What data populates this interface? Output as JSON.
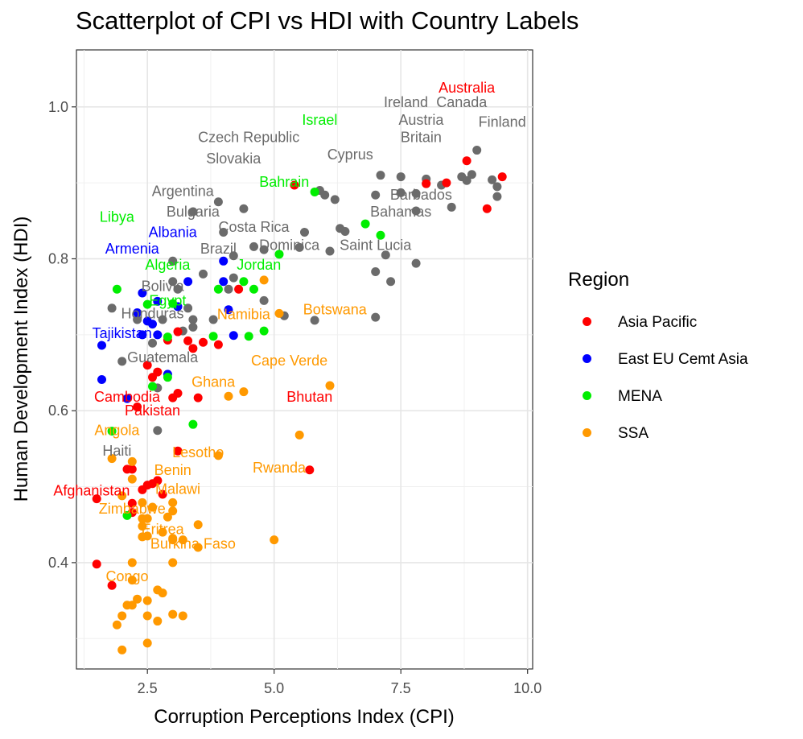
{
  "chart_data": {
    "type": "scatter",
    "title": "Scatterplot of CPI vs HDI with Country Labels",
    "xlabel": "Corruption Perceptions Index (CPI)",
    "ylabel": "Human Development Index (HDI)",
    "xlim": [
      1.1,
      10.1
    ],
    "ylim": [
      0.26,
      1.075
    ],
    "xticks": [
      2.5,
      5.0,
      7.5,
      10.0
    ],
    "xtick_labels": [
      "2.5",
      "5.0",
      "7.5",
      "10.0"
    ],
    "yticks": [
      0.4,
      0.6,
      0.8,
      1.0
    ],
    "ytick_labels": [
      "0.4",
      "0.6",
      "0.8",
      "1.0"
    ],
    "grid": true,
    "legend": {
      "title": "Region",
      "placement": "right"
    },
    "series": [
      {
        "name": "Asia Pacific",
        "color": "#ff0000",
        "points": [
          [
            1.5,
            0.484
          ],
          [
            1.5,
            0.398
          ],
          [
            1.8,
            0.37
          ],
          [
            2.1,
            0.523
          ],
          [
            2.2,
            0.523
          ],
          [
            2.2,
            0.466
          ],
          [
            2.2,
            0.478
          ],
          [
            2.3,
            0.605
          ],
          [
            2.4,
            0.496
          ],
          [
            2.5,
            0.502
          ],
          [
            2.5,
            0.66
          ],
          [
            2.6,
            0.644
          ],
          [
            2.6,
            0.504
          ],
          [
            2.7,
            0.651
          ],
          [
            2.7,
            0.508
          ],
          [
            2.7,
            0.508
          ],
          [
            2.8,
            0.49
          ],
          [
            2.9,
            0.693
          ],
          [
            3.0,
            0.617
          ],
          [
            3.1,
            0.623
          ],
          [
            3.1,
            0.704
          ],
          [
            3.1,
            0.547
          ],
          [
            3.3,
            0.692
          ],
          [
            3.4,
            0.682
          ],
          [
            3.5,
            0.617
          ],
          [
            3.6,
            0.69
          ],
          [
            3.9,
            0.687
          ],
          [
            4.3,
            0.76
          ],
          [
            5.4,
            0.897
          ],
          [
            5.7,
            0.522
          ],
          [
            8.0,
            0.899
          ],
          [
            8.4,
            0.9
          ],
          [
            8.8,
            0.929
          ],
          [
            9.2,
            0.866
          ],
          [
            9.5,
            0.908
          ]
        ]
      },
      {
        "name": "East EU Cemt Asia",
        "color": "#0000ff",
        "points": [
          [
            1.6,
            0.641
          ],
          [
            1.6,
            0.686
          ],
          [
            2.1,
            0.616
          ],
          [
            2.3,
            0.729
          ],
          [
            2.4,
            0.755
          ],
          [
            2.4,
            0.7
          ],
          [
            2.5,
            0.718
          ],
          [
            2.6,
            0.714
          ],
          [
            2.7,
            0.744
          ],
          [
            2.7,
            0.7
          ],
          [
            2.9,
            0.648
          ],
          [
            3.1,
            0.737
          ],
          [
            3.3,
            0.77
          ],
          [
            4.0,
            0.797
          ],
          [
            4.0,
            0.77
          ],
          [
            4.1,
            0.733
          ],
          [
            4.2,
            0.699
          ]
        ]
      },
      {
        "name": "MENA",
        "color": "#00ee00",
        "points": [
          [
            1.8,
            0.573
          ],
          [
            1.9,
            0.76
          ],
          [
            2.1,
            0.462
          ],
          [
            2.5,
            0.74
          ],
          [
            2.6,
            0.632
          ],
          [
            2.9,
            0.644
          ],
          [
            2.9,
            0.697
          ],
          [
            3.0,
            0.741
          ],
          [
            3.4,
            0.582
          ],
          [
            3.8,
            0.698
          ],
          [
            3.9,
            0.76
          ],
          [
            4.4,
            0.77
          ],
          [
            4.5,
            0.698
          ],
          [
            4.6,
            0.76
          ],
          [
            4.8,
            0.705
          ],
          [
            5.1,
            0.806
          ],
          [
            5.8,
            0.888
          ],
          [
            6.8,
            0.846
          ],
          [
            7.1,
            0.831
          ]
        ]
      },
      {
        "name": "SSA",
        "color": "#ff9900",
        "points": [
          [
            1.8,
            0.537
          ],
          [
            1.9,
            0.318
          ],
          [
            2.0,
            0.285
          ],
          [
            2.0,
            0.33
          ],
          [
            2.0,
            0.488
          ],
          [
            2.1,
            0.344
          ],
          [
            2.2,
            0.344
          ],
          [
            2.2,
            0.377
          ],
          [
            2.2,
            0.4
          ],
          [
            2.2,
            0.533
          ],
          [
            2.2,
            0.51
          ],
          [
            2.3,
            0.352
          ],
          [
            2.4,
            0.434
          ],
          [
            2.4,
            0.448
          ],
          [
            2.4,
            0.458
          ],
          [
            2.4,
            0.479
          ],
          [
            2.5,
            0.294
          ],
          [
            2.5,
            0.33
          ],
          [
            2.5,
            0.35
          ],
          [
            2.5,
            0.435
          ],
          [
            2.5,
            0.458
          ],
          [
            2.6,
            0.473
          ],
          [
            2.7,
            0.323
          ],
          [
            2.7,
            0.364
          ],
          [
            2.8,
            0.36
          ],
          [
            2.8,
            0.44
          ],
          [
            2.9,
            0.46
          ],
          [
            3.0,
            0.4
          ],
          [
            3.0,
            0.43
          ],
          [
            3.0,
            0.432
          ],
          [
            3.0,
            0.468
          ],
          [
            3.0,
            0.479
          ],
          [
            3.0,
            0.332
          ],
          [
            3.2,
            0.43
          ],
          [
            3.2,
            0.33
          ],
          [
            3.5,
            0.42
          ],
          [
            3.5,
            0.45
          ],
          [
            3.9,
            0.541
          ],
          [
            4.1,
            0.619
          ],
          [
            4.4,
            0.625
          ],
          [
            4.8,
            0.772
          ],
          [
            5.0,
            0.43
          ],
          [
            5.1,
            0.728
          ],
          [
            5.5,
            0.568
          ],
          [
            6.1,
            0.633
          ]
        ]
      },
      {
        "name": "",
        "color": "#6b6b6b",
        "points": [
          [
            1.8,
            0.735
          ],
          [
            2.0,
            0.665
          ],
          [
            2.3,
            0.72
          ],
          [
            2.6,
            0.689
          ],
          [
            2.7,
            0.63
          ],
          [
            2.7,
            0.574
          ],
          [
            2.8,
            0.72
          ],
          [
            3.0,
            0.77
          ],
          [
            3.0,
            0.797
          ],
          [
            3.1,
            0.76
          ],
          [
            3.2,
            0.705
          ],
          [
            3.3,
            0.735
          ],
          [
            3.4,
            0.72
          ],
          [
            3.4,
            0.71
          ],
          [
            3.4,
            0.862
          ],
          [
            3.6,
            0.78
          ],
          [
            3.8,
            0.72
          ],
          [
            3.9,
            0.875
          ],
          [
            4.0,
            0.835
          ],
          [
            4.1,
            0.76
          ],
          [
            4.2,
            0.804
          ],
          [
            4.2,
            0.775
          ],
          [
            4.4,
            0.866
          ],
          [
            4.6,
            0.816
          ],
          [
            4.8,
            0.812
          ],
          [
            4.8,
            0.745
          ],
          [
            5.2,
            0.725
          ],
          [
            5.5,
            0.815
          ],
          [
            5.6,
            0.835
          ],
          [
            5.8,
            0.719
          ],
          [
            5.9,
            0.89
          ],
          [
            6.0,
            0.884
          ],
          [
            6.1,
            0.81
          ],
          [
            6.2,
            0.878
          ],
          [
            6.3,
            0.84
          ],
          [
            6.4,
            0.836
          ],
          [
            7.0,
            0.723
          ],
          [
            7.0,
            0.884
          ],
          [
            7.0,
            0.783
          ],
          [
            7.1,
            0.91
          ],
          [
            7.2,
            0.805
          ],
          [
            7.3,
            0.77
          ],
          [
            7.5,
            0.908
          ],
          [
            7.5,
            0.887
          ],
          [
            7.8,
            0.863
          ],
          [
            7.8,
            0.886
          ],
          [
            7.8,
            0.794
          ],
          [
            8.0,
            0.905
          ],
          [
            8.0,
            0.899
          ],
          [
            8.3,
            0.897
          ],
          [
            8.5,
            0.868
          ],
          [
            8.7,
            0.908
          ],
          [
            8.8,
            0.903
          ],
          [
            8.9,
            0.911
          ],
          [
            9.0,
            0.943
          ],
          [
            9.3,
            0.904
          ],
          [
            9.4,
            0.882
          ],
          [
            9.4,
            0.895
          ]
        ]
      }
    ],
    "labels": [
      {
        "text": "Australia",
        "x": 8.8,
        "y": 1.025,
        "color": "#ff0000"
      },
      {
        "text": "Ireland",
        "x": 7.6,
        "y": 1.006,
        "color": "#6b6b6b"
      },
      {
        "text": "Canada",
        "x": 8.7,
        "y": 1.006,
        "color": "#6b6b6b"
      },
      {
        "text": "Israel",
        "x": 5.9,
        "y": 0.983,
        "color": "#00ee00"
      },
      {
        "text": "Austria",
        "x": 7.9,
        "y": 0.983,
        "color": "#6b6b6b"
      },
      {
        "text": "Finland",
        "x": 9.5,
        "y": 0.98,
        "color": "#6b6b6b"
      },
      {
        "text": "Czech Republic",
        "x": 4.5,
        "y": 0.96,
        "color": "#6b6b6b"
      },
      {
        "text": "Britain",
        "x": 7.9,
        "y": 0.96,
        "color": "#6b6b6b"
      },
      {
        "text": "Cyprus",
        "x": 6.5,
        "y": 0.937,
        "color": "#6b6b6b"
      },
      {
        "text": "Slovakia",
        "x": 4.2,
        "y": 0.932,
        "color": "#6b6b6b"
      },
      {
        "text": "Bahrain",
        "x": 5.2,
        "y": 0.901,
        "color": "#00ee00"
      },
      {
        "text": "Argentina",
        "x": 3.2,
        "y": 0.889,
        "color": "#6b6b6b"
      },
      {
        "text": "Barbados",
        "x": 7.9,
        "y": 0.884,
        "color": "#6b6b6b"
      },
      {
        "text": "Bulgaria",
        "x": 3.4,
        "y": 0.862,
        "color": "#6b6b6b"
      },
      {
        "text": "Bahamas",
        "x": 7.5,
        "y": 0.862,
        "color": "#6b6b6b"
      },
      {
        "text": "Libya",
        "x": 1.9,
        "y": 0.855,
        "color": "#00ee00"
      },
      {
        "text": "Costa Rica",
        "x": 4.6,
        "y": 0.842,
        "color": "#6b6b6b"
      },
      {
        "text": "Albania",
        "x": 3.0,
        "y": 0.835,
        "color": "#0000ff"
      },
      {
        "text": "Dominica",
        "x": 5.3,
        "y": 0.818,
        "color": "#6b6b6b"
      },
      {
        "text": "Saint Lucia",
        "x": 7.0,
        "y": 0.818,
        "color": "#6b6b6b"
      },
      {
        "text": "Brazil",
        "x": 3.9,
        "y": 0.813,
        "color": "#6b6b6b"
      },
      {
        "text": "Armenia",
        "x": 2.2,
        "y": 0.813,
        "color": "#0000ff"
      },
      {
        "text": "Algeria",
        "x": 2.9,
        "y": 0.792,
        "color": "#00ee00"
      },
      {
        "text": "Jordan",
        "x": 4.7,
        "y": 0.792,
        "color": "#00ee00"
      },
      {
        "text": "Bolivia",
        "x": 2.8,
        "y": 0.764,
        "color": "#6b6b6b"
      },
      {
        "text": "Egypt",
        "x": 2.9,
        "y": 0.745,
        "color": "#00ee00"
      },
      {
        "text": "Namibia",
        "x": 4.4,
        "y": 0.727,
        "color": "#ff9900"
      },
      {
        "text": "Botswana",
        "x": 6.2,
        "y": 0.733,
        "color": "#ff9900"
      },
      {
        "text": "Honduras",
        "x": 2.6,
        "y": 0.728,
        "color": "#6b6b6b"
      },
      {
        "text": "Tajikistan",
        "x": 2.0,
        "y": 0.702,
        "color": "#0000ff"
      },
      {
        "text": "Guatemala",
        "x": 2.8,
        "y": 0.67,
        "color": "#6b6b6b"
      },
      {
        "text": "Cape Verde",
        "x": 5.3,
        "y": 0.666,
        "color": "#ff9900"
      },
      {
        "text": "Ghana",
        "x": 3.8,
        "y": 0.638,
        "color": "#ff9900"
      },
      {
        "text": "Cambodia",
        "x": 2.1,
        "y": 0.618,
        "color": "#ff0000"
      },
      {
        "text": "Bhutan",
        "x": 5.7,
        "y": 0.618,
        "color": "#ff0000"
      },
      {
        "text": "Pakistan",
        "x": 2.6,
        "y": 0.6,
        "color": "#ff0000"
      },
      {
        "text": "Angola",
        "x": 1.9,
        "y": 0.574,
        "color": "#ff9900"
      },
      {
        "text": "Haiti",
        "x": 1.9,
        "y": 0.547,
        "color": "#6b6b6b"
      },
      {
        "text": "Lesotho",
        "x": 3.5,
        "y": 0.545,
        "color": "#ff9900"
      },
      {
        "text": "Rwanda",
        "x": 5.1,
        "y": 0.525,
        "color": "#ff9900"
      },
      {
        "text": "Benin",
        "x": 3.0,
        "y": 0.522,
        "color": "#ff9900"
      },
      {
        "text": "Afghanistan",
        "x": 1.4,
        "y": 0.495,
        "color": "#ff0000"
      },
      {
        "text": "Malawi",
        "x": 3.1,
        "y": 0.497,
        "color": "#ff9900"
      },
      {
        "text": "Zimbabwe",
        "x": 2.2,
        "y": 0.471,
        "color": "#ff9900"
      },
      {
        "text": "Eritrea",
        "x": 2.8,
        "y": 0.444,
        "color": "#ff9900"
      },
      {
        "text": "Burkina Faso",
        "x": 3.4,
        "y": 0.425,
        "color": "#ff9900"
      },
      {
        "text": "Congo",
        "x": 2.1,
        "y": 0.382,
        "color": "#ff9900"
      }
    ]
  }
}
